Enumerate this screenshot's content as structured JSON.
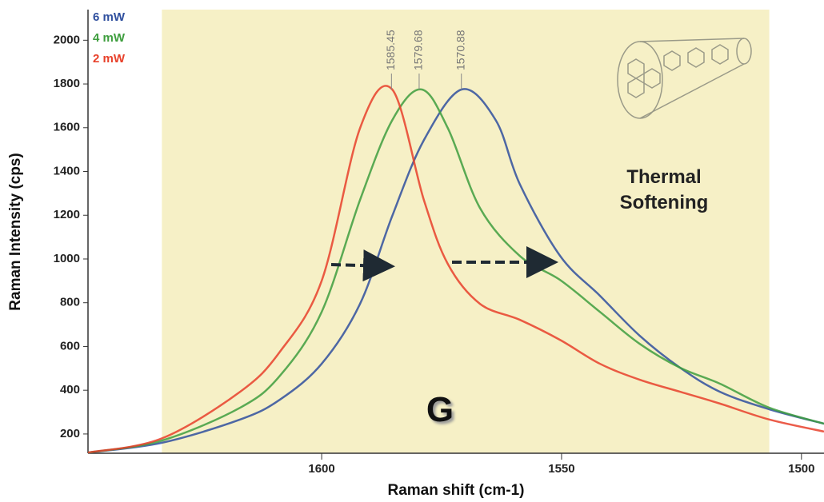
{
  "chart_data": {
    "type": "line",
    "x_label": "Raman shift (cm-1)",
    "y_label": "Raman Intensity (cps)",
    "xlim": [
      1648.7,
      1495.3
    ],
    "ylim": [
      112,
      2140
    ],
    "xticks": [
      1600,
      1550,
      1500
    ],
    "yticks": [
      200,
      400,
      600,
      800,
      1000,
      1200,
      1400,
      1600,
      1800,
      2000
    ],
    "highlight_range": [
      1633.3,
      1506.7
    ],
    "highlight_color": "#f6f0c6",
    "peak_labels": [
      1585.45,
      1579.68,
      1570.88
    ],
    "annotations": [
      "Thermal Softening",
      "G"
    ],
    "series": [
      {
        "name": "6 mW",
        "color": "#2f4f9e",
        "x": [
          1648.7,
          1633.3,
          1617,
          1608.7,
          1600,
          1592,
          1585.3,
          1578.7,
          1570.8,
          1563.7,
          1558.7,
          1550.3,
          1542,
          1533.7,
          1525.3,
          1517,
          1506.7,
          1495.3
        ],
        "values": [
          115,
          160,
          266,
          357,
          521,
          795,
          1196,
          1543,
          1775,
          1634,
          1342,
          1014,
          832,
          649,
          503,
          393,
          313,
          247
        ]
      },
      {
        "name": "4 mW",
        "color": "#3e9e3e",
        "x": [
          1648.7,
          1633.3,
          1617,
          1608.7,
          1600,
          1592,
          1585.3,
          1579.2,
          1573.7,
          1567,
          1558.7,
          1550.3,
          1542,
          1533.7,
          1525.3,
          1517,
          1506.7,
          1495.3
        ],
        "values": [
          115,
          170,
          320,
          466,
          758,
          1270,
          1634,
          1775,
          1598,
          1233,
          1014,
          904,
          758,
          612,
          503,
          430,
          320,
          247
        ]
      },
      {
        "name": "2 mW",
        "color": "#e8402a",
        "x": [
          1648.7,
          1633.3,
          1617,
          1608.7,
          1600,
          1592,
          1585.3,
          1578.7,
          1573.7,
          1567,
          1558.7,
          1550.3,
          1542,
          1533.7,
          1525.3,
          1517,
          1506.7,
          1495.3
        ],
        "values": [
          115,
          180,
          393,
          576,
          900,
          1598,
          1775,
          1270,
          977,
          795,
          722,
          630,
          521,
          448,
          393,
          339,
          266,
          211
        ]
      }
    ]
  }
}
